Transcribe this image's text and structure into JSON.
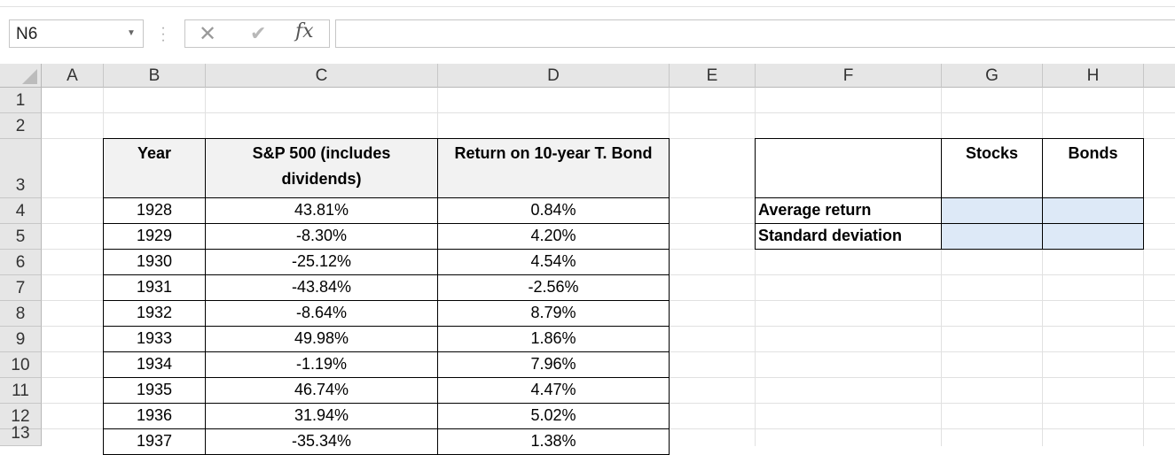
{
  "name_box": "N6",
  "formula_bar": {
    "fx_label": "fx",
    "content": ""
  },
  "columns": [
    "A",
    "B",
    "C",
    "D",
    "E",
    "F",
    "G",
    "H"
  ],
  "rows": [
    "1",
    "2",
    "3",
    "4",
    "5",
    "6",
    "7",
    "8",
    "9",
    "10",
    "11",
    "12",
    "13"
  ],
  "table": {
    "headers": [
      "Year",
      "S&P 500 (includes dividends)",
      "Return on 10-year T. Bond"
    ],
    "rows": [
      [
        "1928",
        "43.81%",
        "0.84%"
      ],
      [
        "1929",
        "-8.30%",
        "4.20%"
      ],
      [
        "1930",
        "-25.12%",
        "4.54%"
      ],
      [
        "1931",
        "-43.84%",
        "-2.56%"
      ],
      [
        "1932",
        "-8.64%",
        "8.79%"
      ],
      [
        "1933",
        "49.98%",
        "1.86%"
      ],
      [
        "1934",
        "-1.19%",
        "7.96%"
      ],
      [
        "1935",
        "46.74%",
        "4.47%"
      ],
      [
        "1936",
        "31.94%",
        "5.02%"
      ],
      [
        "1937",
        "-35.34%",
        "1.38%"
      ]
    ]
  },
  "stats": {
    "headers": [
      "Stocks",
      "Bonds"
    ],
    "labels": [
      "Average return",
      "Standard deviation"
    ]
  },
  "colors": {
    "input_fill": "#dde9f7",
    "header_fill": "#f2f2f2"
  }
}
